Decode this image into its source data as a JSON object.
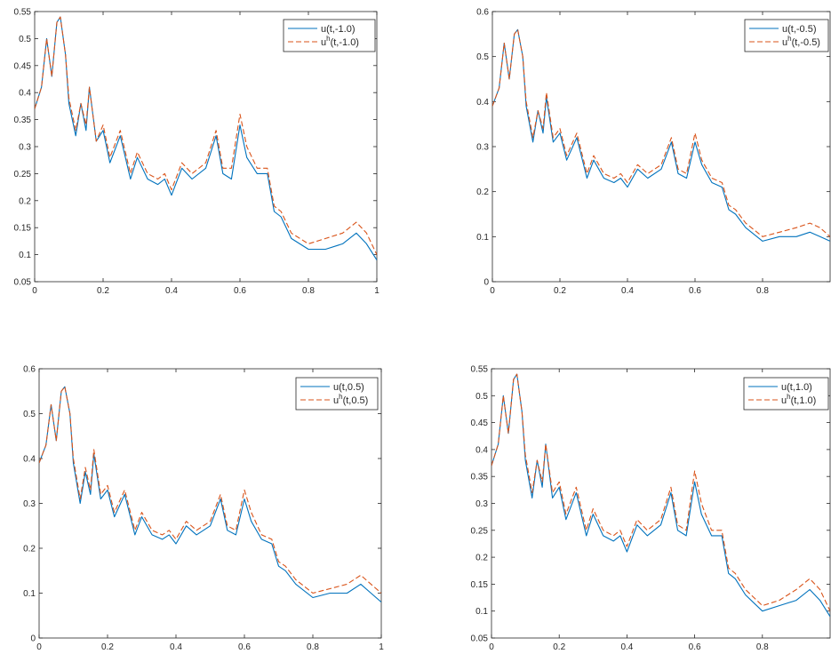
{
  "colors": {
    "exact": "#0072BD",
    "approx": "#D95319",
    "axis": "#262626",
    "background": "#ffffff"
  },
  "chart_data": [
    {
      "type": "line",
      "xlim": [
        0,
        1
      ],
      "ylim": [
        0.05,
        0.55
      ],
      "xticks": [
        0,
        0.2,
        0.4,
        0.6,
        0.8,
        1
      ],
      "xtick_labels": [
        "0",
        "0.2",
        "0.4",
        "0.6",
        "0.8",
        "1"
      ],
      "yticks": [
        0.05,
        0.1,
        0.15,
        0.2,
        0.25,
        0.3,
        0.35,
        0.4,
        0.45,
        0.5,
        0.55
      ],
      "ytick_labels": [
        "0.05",
        "0.1",
        "0.15",
        "0.2",
        "0.25",
        "0.3",
        "0.35",
        "0.4",
        "0.45",
        "0.5",
        "0.55"
      ],
      "legend_position": "top-right",
      "grid": false,
      "x": [
        0,
        0.02,
        0.035,
        0.05,
        0.065,
        0.075,
        0.09,
        0.1,
        0.12,
        0.135,
        0.15,
        0.16,
        0.18,
        0.2,
        0.22,
        0.25,
        0.28,
        0.3,
        0.33,
        0.36,
        0.38,
        0.4,
        0.43,
        0.46,
        0.5,
        0.53,
        0.55,
        0.575,
        0.6,
        0.62,
        0.65,
        0.68,
        0.7,
        0.72,
        0.75,
        0.8,
        0.85,
        0.9,
        0.94,
        0.97,
        1.0
      ],
      "series": [
        {
          "name": "u(t,-1.0)",
          "style": "solid",
          "color": "#0072BD",
          "values": [
            0.37,
            0.41,
            0.5,
            0.43,
            0.53,
            0.54,
            0.47,
            0.38,
            0.32,
            0.38,
            0.33,
            0.41,
            0.31,
            0.33,
            0.27,
            0.32,
            0.24,
            0.28,
            0.24,
            0.23,
            0.24,
            0.21,
            0.26,
            0.24,
            0.26,
            0.32,
            0.25,
            0.24,
            0.34,
            0.28,
            0.25,
            0.25,
            0.18,
            0.17,
            0.13,
            0.11,
            0.11,
            0.12,
            0.14,
            0.12,
            0.09
          ]
        },
        {
          "name": "u^h(t,-1.0)",
          "style": "dashed",
          "color": "#D95319",
          "values": [
            0.37,
            0.41,
            0.5,
            0.43,
            0.53,
            0.54,
            0.47,
            0.39,
            0.33,
            0.38,
            0.34,
            0.41,
            0.31,
            0.34,
            0.28,
            0.33,
            0.25,
            0.29,
            0.25,
            0.24,
            0.25,
            0.22,
            0.27,
            0.25,
            0.27,
            0.33,
            0.26,
            0.26,
            0.36,
            0.3,
            0.26,
            0.26,
            0.19,
            0.18,
            0.14,
            0.12,
            0.13,
            0.14,
            0.16,
            0.14,
            0.1
          ]
        }
      ]
    },
    {
      "type": "line",
      "xlim": [
        0,
        1
      ],
      "ylim": [
        0,
        0.6
      ],
      "xticks": [
        0,
        0.2,
        0.4,
        0.6,
        0.8
      ],
      "xtick_labels": [
        "0",
        "0.2",
        "0.4",
        "0.6",
        "0.8"
      ],
      "yticks": [
        0,
        0.1,
        0.2,
        0.3,
        0.4,
        0.5,
        0.6
      ],
      "ytick_labels": [
        "0",
        "0.1",
        "0.2",
        "0.3",
        "0.4",
        "0.5",
        "0.6"
      ],
      "legend_position": "top-right",
      "grid": false,
      "x": [
        0,
        0.02,
        0.035,
        0.05,
        0.065,
        0.075,
        0.09,
        0.1,
        0.12,
        0.135,
        0.15,
        0.16,
        0.18,
        0.2,
        0.22,
        0.25,
        0.28,
        0.3,
        0.33,
        0.36,
        0.38,
        0.4,
        0.43,
        0.46,
        0.5,
        0.53,
        0.55,
        0.575,
        0.6,
        0.62,
        0.65,
        0.68,
        0.7,
        0.72,
        0.75,
        0.8,
        0.85,
        0.9,
        0.94,
        0.97,
        1.0
      ],
      "series": [
        {
          "name": "u(t,-0.5)",
          "style": "solid",
          "color": "#0072BD",
          "values": [
            0.39,
            0.43,
            0.53,
            0.45,
            0.55,
            0.56,
            0.5,
            0.39,
            0.31,
            0.38,
            0.33,
            0.41,
            0.31,
            0.33,
            0.27,
            0.32,
            0.23,
            0.27,
            0.23,
            0.22,
            0.23,
            0.21,
            0.25,
            0.23,
            0.25,
            0.31,
            0.24,
            0.23,
            0.31,
            0.26,
            0.22,
            0.21,
            0.16,
            0.15,
            0.12,
            0.09,
            0.1,
            0.1,
            0.11,
            0.1,
            0.09
          ]
        },
        {
          "name": "u^h(t,-0.5)",
          "style": "dashed",
          "color": "#D95319",
          "values": [
            0.39,
            0.43,
            0.53,
            0.45,
            0.55,
            0.56,
            0.5,
            0.4,
            0.32,
            0.38,
            0.34,
            0.42,
            0.32,
            0.34,
            0.28,
            0.33,
            0.24,
            0.28,
            0.24,
            0.23,
            0.24,
            0.22,
            0.26,
            0.24,
            0.26,
            0.32,
            0.25,
            0.24,
            0.33,
            0.27,
            0.23,
            0.22,
            0.17,
            0.16,
            0.13,
            0.1,
            0.11,
            0.12,
            0.13,
            0.12,
            0.1
          ]
        }
      ]
    },
    {
      "type": "line",
      "xlim": [
        0,
        1
      ],
      "ylim": [
        0,
        0.6
      ],
      "xticks": [
        0,
        0.2,
        0.4,
        0.6,
        0.8,
        1
      ],
      "xtick_labels": [
        "0",
        "0.2",
        "0.4",
        "0.6",
        "0.8",
        "1"
      ],
      "yticks": [
        0,
        0.1,
        0.2,
        0.3,
        0.4,
        0.5,
        0.6
      ],
      "ytick_labels": [
        "0",
        "0.1",
        "0.2",
        "0.3",
        "0.4",
        "0.5",
        "0.6"
      ],
      "legend_position": "top-right",
      "grid": false,
      "x": [
        0,
        0.02,
        0.035,
        0.05,
        0.065,
        0.075,
        0.09,
        0.1,
        0.12,
        0.135,
        0.15,
        0.16,
        0.18,
        0.2,
        0.22,
        0.25,
        0.28,
        0.3,
        0.33,
        0.36,
        0.38,
        0.4,
        0.43,
        0.46,
        0.5,
        0.53,
        0.55,
        0.575,
        0.6,
        0.62,
        0.65,
        0.68,
        0.7,
        0.72,
        0.75,
        0.8,
        0.85,
        0.9,
        0.94,
        0.97,
        1.0
      ],
      "series": [
        {
          "name": "u(t,0.5)",
          "style": "solid",
          "color": "#0072BD",
          "values": [
            0.39,
            0.43,
            0.52,
            0.44,
            0.55,
            0.56,
            0.5,
            0.39,
            0.3,
            0.37,
            0.32,
            0.41,
            0.31,
            0.33,
            0.27,
            0.32,
            0.23,
            0.27,
            0.23,
            0.22,
            0.23,
            0.21,
            0.25,
            0.23,
            0.25,
            0.31,
            0.24,
            0.23,
            0.31,
            0.26,
            0.22,
            0.21,
            0.16,
            0.15,
            0.12,
            0.09,
            0.1,
            0.1,
            0.12,
            0.1,
            0.08
          ]
        },
        {
          "name": "u^h(t,0.5)",
          "style": "dashed",
          "color": "#D95319",
          "values": [
            0.39,
            0.43,
            0.52,
            0.44,
            0.55,
            0.56,
            0.5,
            0.4,
            0.31,
            0.38,
            0.33,
            0.42,
            0.32,
            0.34,
            0.28,
            0.33,
            0.24,
            0.28,
            0.24,
            0.23,
            0.24,
            0.22,
            0.26,
            0.24,
            0.26,
            0.32,
            0.25,
            0.24,
            0.33,
            0.28,
            0.23,
            0.22,
            0.17,
            0.16,
            0.13,
            0.1,
            0.11,
            0.12,
            0.14,
            0.12,
            0.1
          ]
        }
      ]
    },
    {
      "type": "line",
      "xlim": [
        0,
        1
      ],
      "ylim": [
        0.05,
        0.55
      ],
      "xticks": [
        0,
        0.2,
        0.4,
        0.6,
        0.8
      ],
      "xtick_labels": [
        "0",
        "0.2",
        "0.4",
        "0.6",
        "0.8"
      ],
      "yticks": [
        0.05,
        0.1,
        0.15,
        0.2,
        0.25,
        0.3,
        0.35,
        0.4,
        0.45,
        0.5,
        0.55
      ],
      "ytick_labels": [
        "0.05",
        "0.1",
        "0.15",
        "0.2",
        "0.25",
        "0.3",
        "0.35",
        "0.4",
        "0.45",
        "0.5",
        "0.55"
      ],
      "legend_position": "top-right",
      "grid": false,
      "x": [
        0,
        0.02,
        0.035,
        0.05,
        0.065,
        0.075,
        0.09,
        0.1,
        0.12,
        0.135,
        0.15,
        0.16,
        0.18,
        0.2,
        0.22,
        0.25,
        0.28,
        0.3,
        0.33,
        0.36,
        0.38,
        0.4,
        0.43,
        0.46,
        0.5,
        0.53,
        0.55,
        0.575,
        0.6,
        0.62,
        0.65,
        0.68,
        0.7,
        0.72,
        0.75,
        0.8,
        0.85,
        0.9,
        0.94,
        0.97,
        1.0
      ],
      "series": [
        {
          "name": "u(t,1.0)",
          "style": "solid",
          "color": "#0072BD",
          "values": [
            0.37,
            0.41,
            0.5,
            0.43,
            0.53,
            0.54,
            0.47,
            0.38,
            0.31,
            0.38,
            0.33,
            0.41,
            0.31,
            0.33,
            0.27,
            0.32,
            0.24,
            0.28,
            0.24,
            0.23,
            0.24,
            0.21,
            0.26,
            0.24,
            0.26,
            0.32,
            0.25,
            0.24,
            0.34,
            0.28,
            0.24,
            0.24,
            0.17,
            0.16,
            0.13,
            0.1,
            0.11,
            0.12,
            0.14,
            0.12,
            0.09
          ]
        },
        {
          "name": "u^h(t,1.0)",
          "style": "dashed",
          "color": "#D95319",
          "values": [
            0.37,
            0.41,
            0.5,
            0.43,
            0.53,
            0.54,
            0.47,
            0.39,
            0.32,
            0.38,
            0.34,
            0.41,
            0.32,
            0.34,
            0.28,
            0.33,
            0.25,
            0.29,
            0.25,
            0.24,
            0.25,
            0.22,
            0.27,
            0.25,
            0.27,
            0.33,
            0.26,
            0.25,
            0.36,
            0.3,
            0.25,
            0.25,
            0.18,
            0.17,
            0.14,
            0.11,
            0.12,
            0.14,
            0.16,
            0.14,
            0.1
          ]
        }
      ]
    }
  ]
}
